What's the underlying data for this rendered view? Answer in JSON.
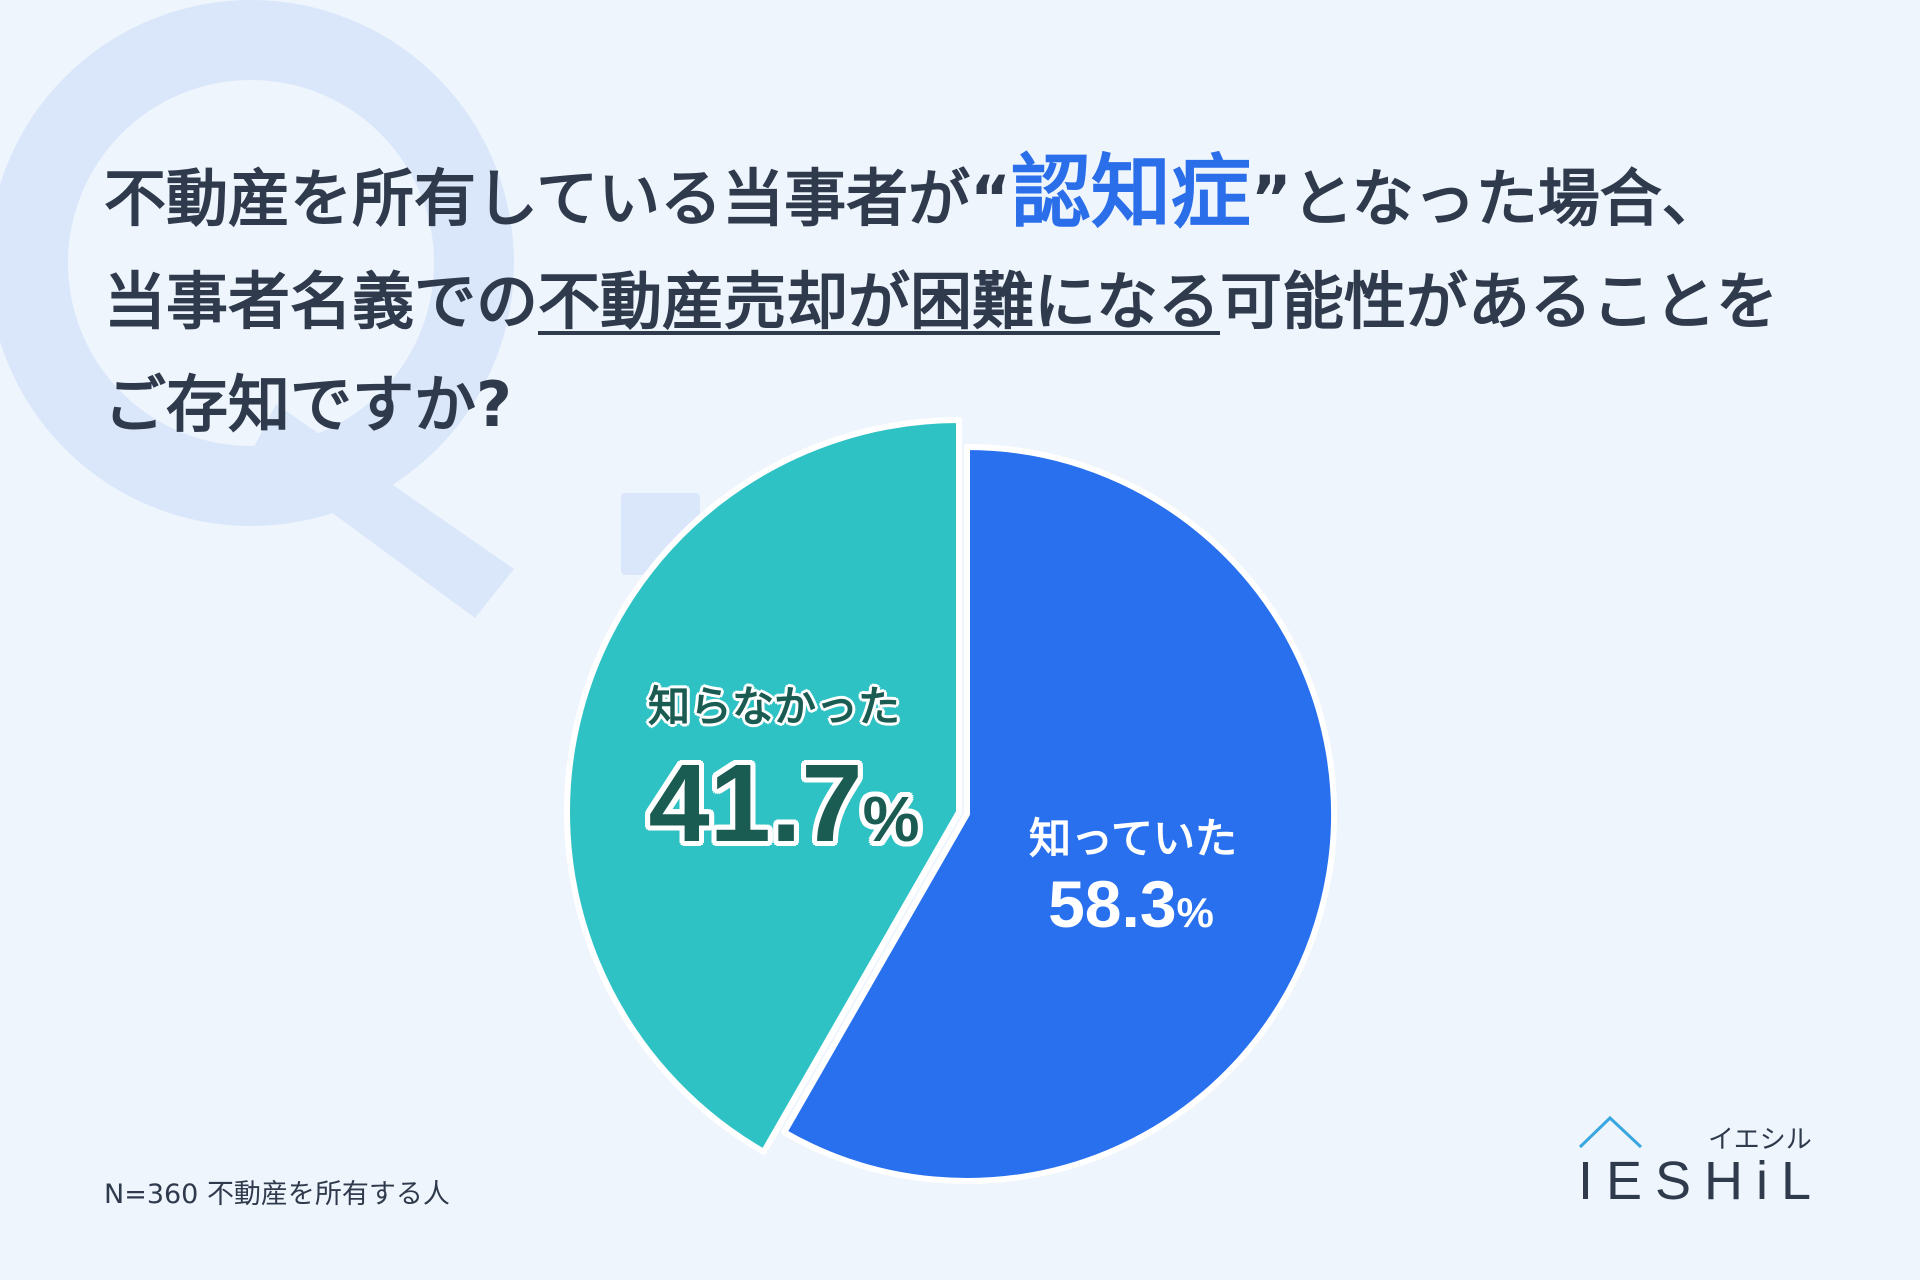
{
  "colors": {
    "background": "#eef5fd",
    "title_text": "#2f3a4c",
    "highlight": "#2b6ee9",
    "watermark": "#dae7fa",
    "label_dark": "#1a5b52",
    "label_light": "#ffffff",
    "logo_roof": "#3aa6df"
  },
  "watermark": {
    "text": "Q."
  },
  "question": {
    "line1_lead": "不動産を所有している当事者が",
    "open_quote": "“",
    "highlight": "認知症",
    "close_quote": "”",
    "line1_tail": "となった場合、",
    "line2_lead": "当事者名義での",
    "line2_underlined": "不動産売却が困難になる",
    "line2_tail": "可能性があることを",
    "line3": "ご存知ですか?"
  },
  "chart_data": {
    "type": "pie",
    "categories": [
      "知っていた",
      "知らなかった"
    ],
    "values": [
      58.3,
      41.7
    ],
    "unit": "%",
    "colors": [
      "#2870ee",
      "#2ec2c4"
    ],
    "exploded": [
      false,
      true
    ]
  },
  "footer": {
    "sample_note": "N=360 不動産を所有する人"
  },
  "logo": {
    "kana": "イエシル",
    "wordmark": "IESHiL",
    "icon": "house-roof-icon"
  }
}
